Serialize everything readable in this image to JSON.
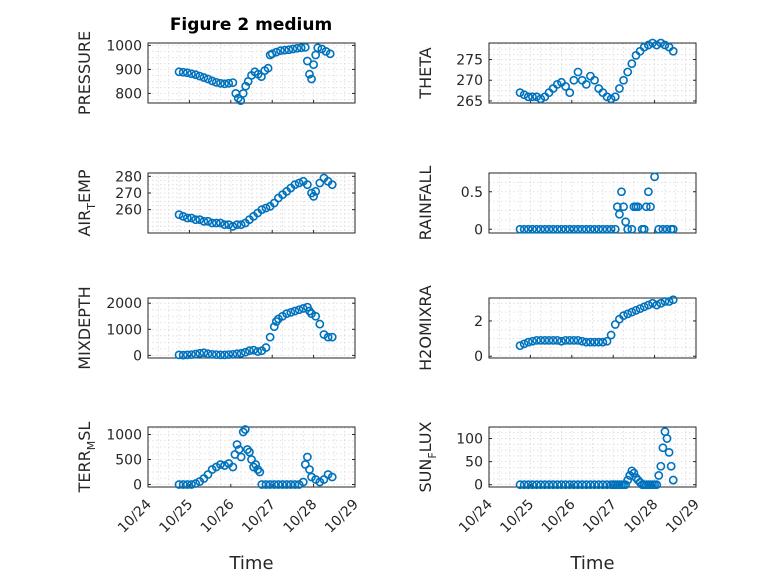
{
  "figure": {
    "title": "Figure 2 medium"
  },
  "colors": {
    "marker": "#0072BD",
    "axis": "#262626",
    "grid": "#d9d9d9"
  },
  "chart_data": [
    {
      "type": "scatter",
      "id": "pressure",
      "ylabel": "PRESSURE",
      "ylim": [
        760,
        1010
      ],
      "yticks": [
        800,
        900,
        1000
      ],
      "xlim": [
        0,
        5
      ],
      "xticks_shown": false,
      "x": [
        0.75,
        0.85,
        0.95,
        1.05,
        1.15,
        1.25,
        1.35,
        1.45,
        1.55,
        1.65,
        1.75,
        1.85,
        1.95,
        2.05,
        2.12,
        2.18,
        2.24,
        2.3,
        2.36,
        2.42,
        2.5,
        2.58,
        2.66,
        2.74,
        2.82,
        2.9,
        2.95,
        3.0,
        3.1,
        3.2,
        3.3,
        3.4,
        3.5,
        3.6,
        3.7,
        3.8,
        3.85,
        3.9,
        3.95,
        4.0,
        4.05,
        4.1,
        4.2,
        4.3,
        4.4
      ],
      "y": [
        890,
        888,
        886,
        882,
        878,
        872,
        866,
        860,
        852,
        846,
        842,
        840,
        842,
        845,
        800,
        780,
        770,
        800,
        830,
        850,
        875,
        890,
        880,
        870,
        895,
        905,
        960,
        965,
        972,
        978,
        980,
        982,
        985,
        988,
        990,
        992,
        935,
        880,
        860,
        920,
        960,
        990,
        985,
        975,
        965
      ]
    },
    {
      "type": "scatter",
      "id": "theta",
      "ylabel": "THETA",
      "ylim": [
        264.5,
        279
      ],
      "yticks": [
        265,
        270,
        275
      ],
      "xlim": [
        0,
        5
      ],
      "xticks_shown": false,
      "x": [
        0.75,
        0.85,
        0.95,
        1.05,
        1.15,
        1.25,
        1.35,
        1.45,
        1.55,
        1.65,
        1.75,
        1.85,
        1.95,
        2.05,
        2.15,
        2.25,
        2.35,
        2.45,
        2.55,
        2.65,
        2.75,
        2.85,
        2.95,
        3.05,
        3.15,
        3.25,
        3.35,
        3.45,
        3.55,
        3.65,
        3.75,
        3.85,
        3.95,
        4.05,
        4.15,
        4.25,
        4.35,
        4.45
      ],
      "y": [
        267,
        266.5,
        266,
        266,
        266,
        265.5,
        266,
        267,
        268,
        269,
        269.5,
        268.5,
        267,
        270,
        272,
        270,
        269,
        271,
        270,
        268,
        267,
        266,
        265.5,
        266,
        268,
        270,
        272,
        274,
        276,
        277,
        278,
        278.5,
        279,
        278.5,
        279,
        278.5,
        278,
        277
      ]
    },
    {
      "type": "scatter",
      "id": "airtemp",
      "ylabel": "AIR_TEMP",
      "ylim": [
        246,
        282
      ],
      "yticks": [
        260,
        270,
        280
      ],
      "xlim": [
        0,
        5
      ],
      "xticks_shown": false,
      "x": [
        0.75,
        0.85,
        0.95,
        1.05,
        1.15,
        1.25,
        1.35,
        1.45,
        1.55,
        1.65,
        1.75,
        1.85,
        1.95,
        2.05,
        2.15,
        2.25,
        2.35,
        2.45,
        2.55,
        2.65,
        2.75,
        2.85,
        2.95,
        3.05,
        3.15,
        3.25,
        3.35,
        3.45,
        3.55,
        3.65,
        3.75,
        3.85,
        3.95,
        4.0,
        4.05,
        4.15,
        4.25,
        4.35,
        4.45
      ],
      "y": [
        257,
        256,
        255,
        255,
        254,
        254,
        253,
        253,
        252,
        252,
        252,
        251,
        251,
        250,
        251,
        251,
        252,
        254,
        256,
        258,
        260,
        261,
        262,
        264,
        267,
        269,
        271,
        273,
        275,
        276,
        277,
        275,
        270,
        268,
        271,
        276,
        279,
        277,
        275
      ]
    },
    {
      "type": "scatter",
      "id": "rainfall",
      "ylabel": "RAINFALL",
      "ylim": [
        -0.05,
        0.75
      ],
      "yticks": [
        0,
        0.5
      ],
      "xlim": [
        0,
        5
      ],
      "xticks_shown": false,
      "x": [
        0.75,
        0.85,
        0.95,
        1.05,
        1.15,
        1.25,
        1.35,
        1.45,
        1.55,
        1.65,
        1.75,
        1.85,
        1.95,
        2.05,
        2.15,
        2.25,
        2.35,
        2.45,
        2.55,
        2.65,
        2.75,
        2.85,
        2.95,
        3.05,
        3.1,
        3.15,
        3.2,
        3.25,
        3.3,
        3.35,
        3.45,
        3.5,
        3.55,
        3.6,
        3.7,
        3.75,
        3.8,
        3.85,
        3.9,
        4.0,
        4.1,
        4.2,
        4.3,
        4.4,
        4.45
      ],
      "y": [
        0,
        0,
        0,
        0,
        0,
        0,
        0,
        0,
        0,
        0,
        0,
        0,
        0,
        0,
        0,
        0,
        0,
        0,
        0,
        0,
        0,
        0,
        0,
        0,
        0.3,
        0.2,
        0.5,
        0.3,
        0.1,
        0,
        0,
        0.3,
        0.3,
        0.3,
        0,
        0,
        0.3,
        0.5,
        0.3,
        0.7,
        0,
        0,
        0,
        0,
        0
      ]
    },
    {
      "type": "scatter",
      "id": "mixdepth",
      "ylabel": "MIXDEPTH",
      "ylim": [
        -100,
        2200
      ],
      "yticks": [
        0,
        1000,
        2000
      ],
      "xlim": [
        0,
        5
      ],
      "xticks_shown": false,
      "x": [
        0.75,
        0.85,
        0.95,
        1.05,
        1.15,
        1.25,
        1.35,
        1.45,
        1.55,
        1.65,
        1.75,
        1.85,
        1.95,
        2.05,
        2.15,
        2.25,
        2.35,
        2.45,
        2.55,
        2.65,
        2.75,
        2.85,
        2.95,
        3.05,
        3.1,
        3.15,
        3.25,
        3.35,
        3.45,
        3.55,
        3.65,
        3.75,
        3.85,
        3.9,
        3.95,
        4.05,
        4.15,
        4.25,
        4.35,
        4.45
      ],
      "y": [
        20,
        10,
        20,
        30,
        50,
        80,
        100,
        60,
        40,
        30,
        20,
        20,
        30,
        40,
        60,
        80,
        120,
        180,
        200,
        150,
        180,
        300,
        700,
        1100,
        1300,
        1400,
        1500,
        1600,
        1650,
        1700,
        1750,
        1800,
        1850,
        1700,
        1600,
        1500,
        1200,
        800,
        700,
        700
      ]
    },
    {
      "type": "scatter",
      "id": "h2omixra",
      "ylabel": "H2OMIXRA",
      "ylim": [
        -0.1,
        3.3
      ],
      "yticks": [
        0,
        2
      ],
      "xlim": [
        0,
        5
      ],
      "xticks_shown": false,
      "x": [
        0.75,
        0.85,
        0.95,
        1.05,
        1.15,
        1.25,
        1.35,
        1.45,
        1.55,
        1.65,
        1.75,
        1.85,
        1.95,
        2.05,
        2.15,
        2.25,
        2.35,
        2.45,
        2.55,
        2.65,
        2.75,
        2.85,
        2.95,
        3.05,
        3.15,
        3.25,
        3.35,
        3.45,
        3.55,
        3.65,
        3.75,
        3.85,
        3.95,
        4.05,
        4.15,
        4.25,
        4.35,
        4.45
      ],
      "y": [
        0.6,
        0.7,
        0.8,
        0.85,
        0.9,
        0.9,
        0.9,
        0.9,
        0.9,
        0.9,
        0.85,
        0.9,
        0.9,
        0.9,
        0.9,
        0.85,
        0.8,
        0.8,
        0.8,
        0.8,
        0.8,
        0.85,
        1.2,
        1.8,
        2.1,
        2.3,
        2.4,
        2.5,
        2.6,
        2.7,
        2.8,
        2.9,
        3.0,
        2.9,
        3.0,
        3.1,
        3.1,
        3.2
      ]
    },
    {
      "type": "scatter",
      "id": "terrmsl",
      "ylabel": "TERR_MSL",
      "ylim": [
        -50,
        1150
      ],
      "yticks": [
        0,
        500,
        1000
      ],
      "xlim": [
        0,
        5
      ],
      "xticks": [
        0,
        1,
        2,
        3,
        4,
        5
      ],
      "xticklabels": [
        "10/24",
        "10/25",
        "10/26",
        "10/27",
        "10/28",
        "10/29"
      ],
      "xlabel": "Time",
      "x": [
        0.75,
        0.85,
        0.95,
        1.05,
        1.15,
        1.25,
        1.35,
        1.45,
        1.55,
        1.65,
        1.75,
        1.85,
        1.95,
        2.05,
        2.1,
        2.15,
        2.2,
        2.25,
        2.3,
        2.35,
        2.4,
        2.45,
        2.5,
        2.55,
        2.6,
        2.65,
        2.7,
        2.75,
        2.85,
        2.95,
        3.05,
        3.15,
        3.25,
        3.35,
        3.45,
        3.55,
        3.65,
        3.75,
        3.8,
        3.85,
        3.9,
        3.95,
        4.05,
        4.15,
        4.25,
        4.35,
        4.45
      ],
      "y": [
        0,
        0,
        0,
        0,
        20,
        60,
        120,
        200,
        300,
        350,
        400,
        380,
        420,
        350,
        600,
        800,
        700,
        550,
        1050,
        1100,
        700,
        650,
        500,
        350,
        400,
        300,
        250,
        0,
        0,
        0,
        0,
        0,
        0,
        0,
        0,
        0,
        0,
        50,
        400,
        550,
        300,
        150,
        100,
        50,
        100,
        200,
        150
      ]
    },
    {
      "type": "scatter",
      "id": "sunflux",
      "ylabel": "SUN_FLUX",
      "ylim": [
        -5,
        125
      ],
      "yticks": [
        0,
        50,
        100
      ],
      "xlim": [
        0,
        5
      ],
      "xticks": [
        0,
        1,
        2,
        3,
        4,
        5
      ],
      "xticklabels": [
        "10/24",
        "10/25",
        "10/26",
        "10/27",
        "10/28",
        "10/29"
      ],
      "xlabel": "Time",
      "x": [
        0.75,
        0.85,
        0.95,
        1.05,
        1.15,
        1.25,
        1.35,
        1.45,
        1.55,
        1.65,
        1.75,
        1.85,
        1.95,
        2.05,
        2.15,
        2.25,
        2.35,
        2.45,
        2.55,
        2.65,
        2.75,
        2.85,
        2.95,
        3.0,
        3.05,
        3.1,
        3.15,
        3.2,
        3.25,
        3.3,
        3.35,
        3.4,
        3.45,
        3.5,
        3.55,
        3.6,
        3.65,
        3.7,
        3.75,
        3.8,
        3.85,
        3.9,
        3.95,
        4.0,
        4.05,
        4.1,
        4.15,
        4.2,
        4.25,
        4.3,
        4.35,
        4.4,
        4.45
      ],
      "y": [
        0,
        0,
        0,
        0,
        0,
        0,
        0,
        0,
        0,
        0,
        0,
        0,
        0,
        0,
        0,
        0,
        0,
        0,
        0,
        0,
        0,
        0,
        0,
        0,
        0,
        0,
        0,
        0,
        0,
        0,
        10,
        20,
        30,
        25,
        15,
        10,
        5,
        0,
        0,
        0,
        0,
        0,
        0,
        0,
        0,
        20,
        40,
        80,
        115,
        100,
        70,
        40,
        10
      ]
    }
  ]
}
